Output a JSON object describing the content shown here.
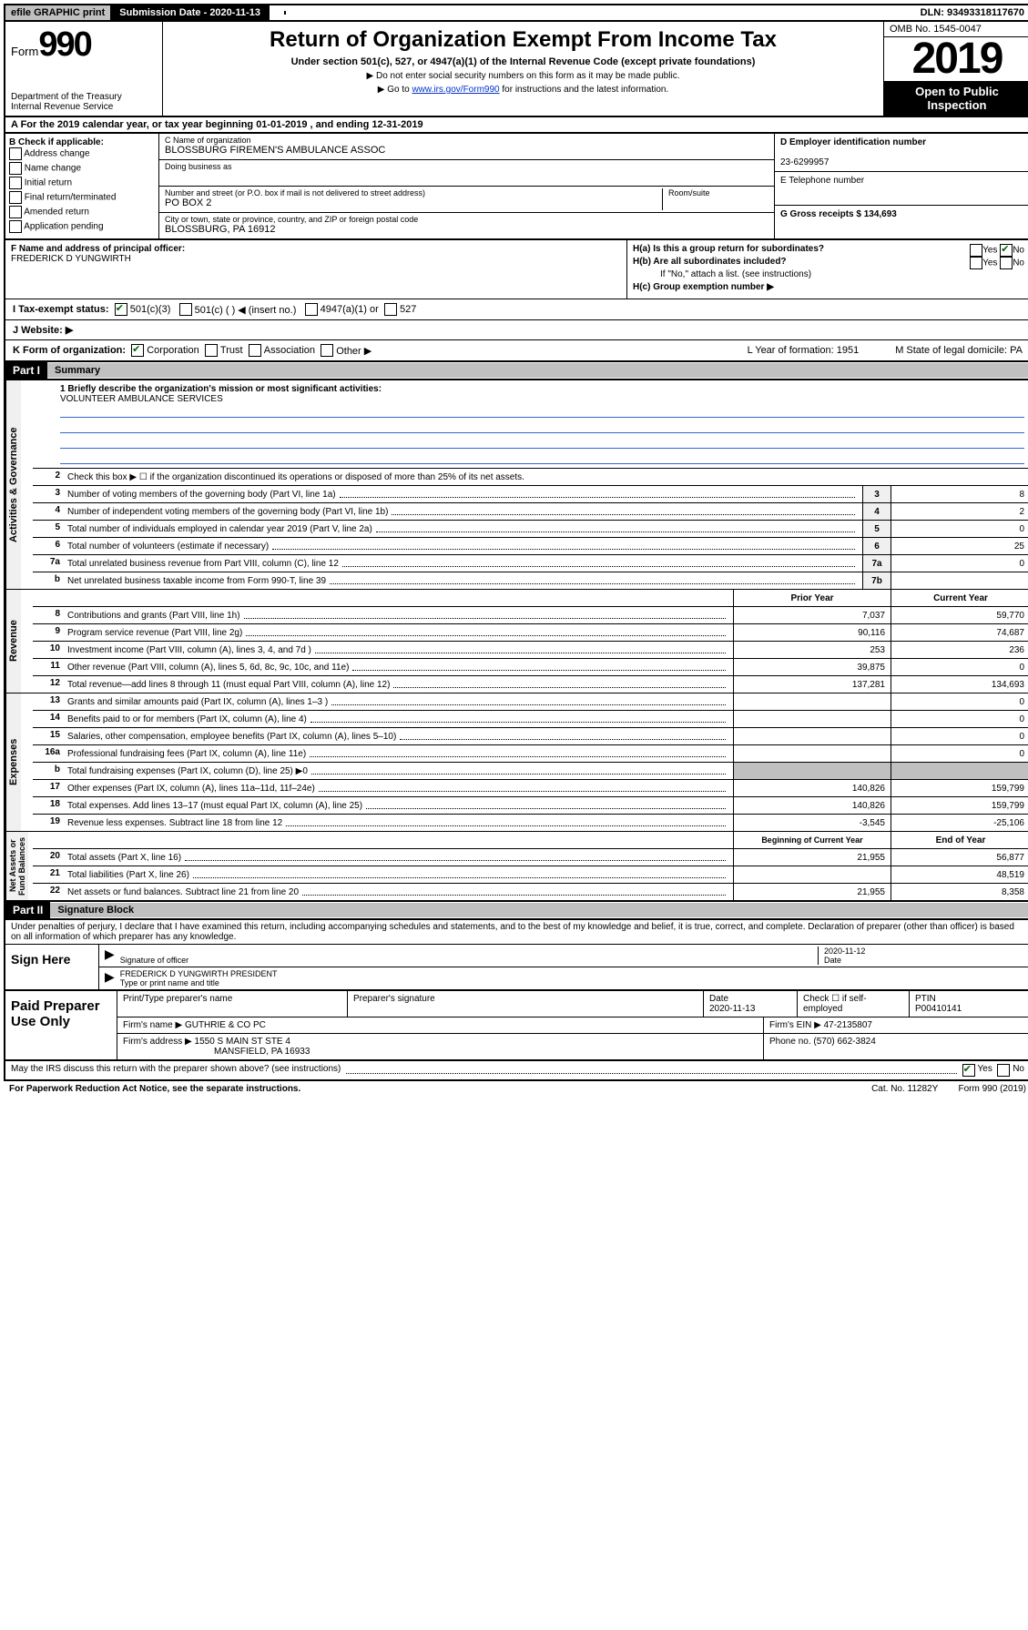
{
  "topbar": {
    "efile": "efile GRAPHIC print",
    "submission_label": "Submission Date - 2020-11-13",
    "dln": "DLN: 93493318117670"
  },
  "header": {
    "form_label": "Form",
    "form_number": "990",
    "title": "Return of Organization Exempt From Income Tax",
    "subtitle": "Under section 501(c), 527, or 4947(a)(1) of the Internal Revenue Code (except private foundations)",
    "note1": "▶ Do not enter social security numbers on this form as it may be made public.",
    "note2_pre": "▶ Go to ",
    "note2_link": "www.irs.gov/Form990",
    "note2_post": " for instructions and the latest information.",
    "dept": "Department of the Treasury\nInternal Revenue Service",
    "omb": "OMB No. 1545-0047",
    "year": "2019",
    "open": "Open to Public Inspection"
  },
  "row_a": "A For the 2019 calendar year, or tax year beginning 01-01-2019   , and ending 12-31-2019",
  "section_b": {
    "label": "B Check if applicable:",
    "opts": [
      "Address change",
      "Name change",
      "Initial return",
      "Final return/terminated",
      "Amended return",
      "Application pending"
    ]
  },
  "section_c": {
    "name_lbl": "C Name of organization",
    "name": "BLOSSBURG FIREMEN'S AMBULANCE ASSOC",
    "dba_lbl": "Doing business as",
    "dba": "",
    "addr_lbl": "Number and street (or P.O. box if mail is not delivered to street address)",
    "room_lbl": "Room/suite",
    "addr": "PO BOX 2",
    "city_lbl": "City or town, state or province, country, and ZIP or foreign postal code",
    "city": "BLOSSBURG, PA  16912"
  },
  "section_de": {
    "d_lbl": "D Employer identification number",
    "d_val": "23-6299957",
    "e_lbl": "E Telephone number",
    "e_val": "",
    "g_lbl": "G Gross receipts $ 134,693"
  },
  "section_f": {
    "lbl": "F Name and address of principal officer:",
    "val": "FREDERICK D YUNGWIRTH"
  },
  "section_h": {
    "ha": "H(a)  Is this a group return for subordinates?",
    "hb": "H(b)  Are all subordinates included?",
    "hb_note": "If \"No,\" attach a list. (see instructions)",
    "hc": "H(c)  Group exemption number ▶",
    "yes": "Yes",
    "no": "No"
  },
  "row_i": {
    "lbl": "I   Tax-exempt status:",
    "o1": "501(c)(3)",
    "o2": "501(c) (   ) ◀ (insert no.)",
    "o3": "4947(a)(1) or",
    "o4": "527"
  },
  "row_j": "J   Website: ▶",
  "row_k": {
    "lbl": "K Form of organization:",
    "o1": "Corporation",
    "o2": "Trust",
    "o3": "Association",
    "o4": "Other ▶",
    "l": "L Year of formation: 1951",
    "m": "M State of legal domicile: PA"
  },
  "part1": {
    "label": "Part I",
    "title": "Summary"
  },
  "governance": {
    "vlabel": "Activities & Governance",
    "line1_lbl": "1  Briefly describe the organization's mission or most significant activities:",
    "line1_val": "VOLUNTEER AMBULANCE SERVICES",
    "line2": "Check this box ▶ ☐  if the organization discontinued its operations or disposed of more than 25% of its net assets.",
    "rows": [
      {
        "n": "3",
        "d": "Number of voting members of the governing body (Part VI, line 1a)",
        "box": "3",
        "v": "8"
      },
      {
        "n": "4",
        "d": "Number of independent voting members of the governing body (Part VI, line 1b)",
        "box": "4",
        "v": "2"
      },
      {
        "n": "5",
        "d": "Total number of individuals employed in calendar year 2019 (Part V, line 2a)",
        "box": "5",
        "v": "0"
      },
      {
        "n": "6",
        "d": "Total number of volunteers (estimate if necessary)",
        "box": "6",
        "v": "25"
      },
      {
        "n": "7a",
        "d": "Total unrelated business revenue from Part VIII, column (C), line 12",
        "box": "7a",
        "v": "0"
      },
      {
        "n": "b",
        "d": "Net unrelated business taxable income from Form 990-T, line 39",
        "box": "7b",
        "v": ""
      }
    ]
  },
  "revenue": {
    "vlabel": "Revenue",
    "hdr_prior": "Prior Year",
    "hdr_current": "Current Year",
    "rows": [
      {
        "n": "8",
        "d": "Contributions and grants (Part VIII, line 1h)",
        "p": "7,037",
        "c": "59,770"
      },
      {
        "n": "9",
        "d": "Program service revenue (Part VIII, line 2g)",
        "p": "90,116",
        "c": "74,687"
      },
      {
        "n": "10",
        "d": "Investment income (Part VIII, column (A), lines 3, 4, and 7d )",
        "p": "253",
        "c": "236"
      },
      {
        "n": "11",
        "d": "Other revenue (Part VIII, column (A), lines 5, 6d, 8c, 9c, 10c, and 11e)",
        "p": "39,875",
        "c": "0"
      },
      {
        "n": "12",
        "d": "Total revenue—add lines 8 through 11 (must equal Part VIII, column (A), line 12)",
        "p": "137,281",
        "c": "134,693"
      }
    ]
  },
  "expenses": {
    "vlabel": "Expenses",
    "rows": [
      {
        "n": "13",
        "d": "Grants and similar amounts paid (Part IX, column (A), lines 1–3 )",
        "p": "",
        "c": "0"
      },
      {
        "n": "14",
        "d": "Benefits paid to or for members (Part IX, column (A), line 4)",
        "p": "",
        "c": "0"
      },
      {
        "n": "15",
        "d": "Salaries, other compensation, employee benefits (Part IX, column (A), lines 5–10)",
        "p": "",
        "c": "0"
      },
      {
        "n": "16a",
        "d": "Professional fundraising fees (Part IX, column (A), line 11e)",
        "p": "",
        "c": "0"
      },
      {
        "n": "b",
        "d": "Total fundraising expenses (Part IX, column (D), line 25) ▶0",
        "p": "shaded",
        "c": "shaded"
      },
      {
        "n": "17",
        "d": "Other expenses (Part IX, column (A), lines 11a–11d, 11f–24e)",
        "p": "140,826",
        "c": "159,799"
      },
      {
        "n": "18",
        "d": "Total expenses. Add lines 13–17 (must equal Part IX, column (A), line 25)",
        "p": "140,826",
        "c": "159,799"
      },
      {
        "n": "19",
        "d": "Revenue less expenses. Subtract line 18 from line 12",
        "p": "-3,545",
        "c": "-25,106"
      }
    ]
  },
  "netassets": {
    "vlabel": "Net Assets or Fund Balances",
    "hdr_begin": "Beginning of Current Year",
    "hdr_end": "End of Year",
    "rows": [
      {
        "n": "20",
        "d": "Total assets (Part X, line 16)",
        "p": "21,955",
        "c": "56,877"
      },
      {
        "n": "21",
        "d": "Total liabilities (Part X, line 26)",
        "p": "",
        "c": "48,519"
      },
      {
        "n": "22",
        "d": "Net assets or fund balances. Subtract line 21 from line 20",
        "p": "21,955",
        "c": "8,358"
      }
    ]
  },
  "part2": {
    "label": "Part II",
    "title": "Signature Block",
    "text": "Under penalties of perjury, I declare that I have examined this return, including accompanying schedules and statements, and to the best of my knowledge and belief, it is true, correct, and complete. Declaration of preparer (other than officer) is based on all information of which preparer has any knowledge."
  },
  "sign": {
    "label": "Sign Here",
    "sig_lbl": "Signature of officer",
    "date_val": "2020-11-12",
    "date_lbl": "Date",
    "name_val": "FREDERICK D YUNGWIRTH  PRESIDENT",
    "name_lbl": "Type or print name and title"
  },
  "paid": {
    "label": "Paid Preparer Use Only",
    "h1": "Print/Type preparer's name",
    "h2": "Preparer's signature",
    "h3": "Date",
    "h3v": "2020-11-13",
    "h4": "Check ☐ if self-employed",
    "h5": "PTIN",
    "h5v": "P00410141",
    "firm_lbl": "Firm's name    ▶",
    "firm_val": "GUTHRIE & CO PC",
    "ein_lbl": "Firm's EIN ▶ 47-2135807",
    "addr_lbl": "Firm's address ▶",
    "addr_val": "1550 S MAIN ST STE 4",
    "addr_val2": "MANSFIELD, PA  16933",
    "phone_lbl": "Phone no. (570) 662-3824"
  },
  "footer": {
    "discuss": "May the IRS discuss this return with the preparer shown above? (see instructions)",
    "yes": "Yes",
    "no": "No",
    "paperwork": "For Paperwork Reduction Act Notice, see the separate instructions.",
    "cat": "Cat. No. 11282Y",
    "form": "Form 990 (2019)"
  }
}
